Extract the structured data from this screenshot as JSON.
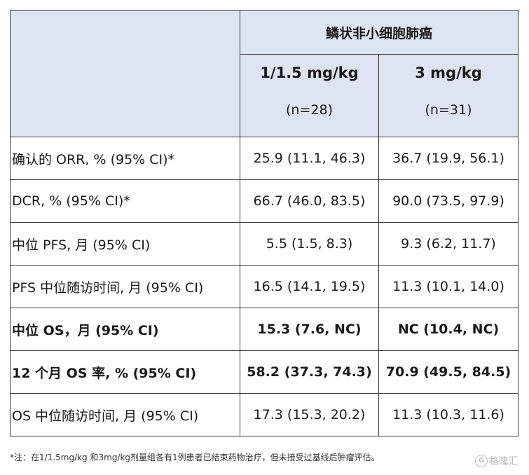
{
  "table": {
    "group_header": "鳞状非小细胞肺癌",
    "dose_columns": [
      {
        "dose": "1/1.5 mg/kg",
        "n": "(n=28)"
      },
      {
        "dose": "3 mg/kg",
        "n": "(n=31)"
      }
    ],
    "rows": [
      {
        "label": "确认的 ORR, % (95% CI)*",
        "v1": "25.9 (11.1, 46.3)",
        "v2": "36.7 (19.9, 56.1)"
      },
      {
        "label": "DCR, % (95% CI)*",
        "v1": "66.7 (46.0, 83.5)",
        "v2": "90.0 (73.5, 97.9)"
      },
      {
        "label": "中位 PFS,  月  (95% CI)",
        "v1": "5.5 (1.5, 8.3)",
        "v2": "9.3 (6.2, 11.7)"
      },
      {
        "label": "PFS 中位随访时间,  月  (95% CI)",
        "v1": "16.5 (14.1, 19.5)",
        "v2": "11.3 (10.1, 14.0)"
      },
      {
        "label": "中位 OS，月  (95% CI)",
        "v1": "15.3 (7.6, NC)",
        "v2": "NC (10.4, NC)"
      },
      {
        "label": "12 个月 OS 率, % (95% CI)",
        "v1": "58.2 (37.3, 74.3)",
        "v2": "70.9 (49.5, 84.5)"
      },
      {
        "label": "OS 中位随访时间,  月  (95% CI)",
        "v1": "17.3 (15.3, 20.2)",
        "v2": "11.3 (10.3, 11.6)"
      }
    ]
  },
  "footnote": "*注：在1/1.5mg/kg 和3mg/kg剂量组各有1例患者已结束药物治疗，但未接受过基线后肿瘤评估。",
  "watermark": {
    "logo_glyph": "G",
    "text": "格隆汇"
  }
}
